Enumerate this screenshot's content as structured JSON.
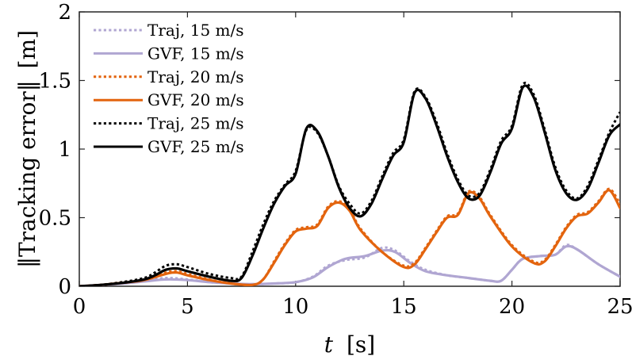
{
  "chart_data": {
    "type": "line",
    "title": "",
    "xlabel": "t [s]",
    "xlabel_var": "t",
    "xlabel_unit": "[s]",
    "ylabel": "||Tracking error|| [m]",
    "ylabel_text": "Tracking error",
    "ylabel_unit": "[m]",
    "xlim": [
      0,
      25
    ],
    "ylim": [
      0,
      2
    ],
    "xticks": [
      0,
      5,
      10,
      15,
      20,
      25
    ],
    "xtick_labels": [
      "0",
      "5",
      "10",
      "15",
      "20",
      "25"
    ],
    "yticks": [
      0,
      0.5,
      1,
      1.5,
      2
    ],
    "ytick_labels": [
      "0",
      "0.5",
      "1",
      "1.5",
      "2"
    ],
    "grid": false,
    "legend_position": "top-left",
    "series": [
      {
        "name": "Traj, 15 m/s",
        "color": "#b0a6d2",
        "style": "dotted",
        "points": [
          [
            0,
            0
          ],
          [
            1,
            0.01
          ],
          [
            2,
            0.025
          ],
          [
            3,
            0.04
          ],
          [
            4,
            0.06
          ],
          [
            5,
            0.05
          ],
          [
            6,
            0.03
          ],
          [
            7,
            0.02
          ],
          [
            8,
            0.015
          ],
          [
            9,
            0.02
          ],
          [
            10,
            0.03
          ],
          [
            10.8,
            0.07
          ],
          [
            11.5,
            0.15
          ],
          [
            12.3,
            0.19
          ],
          [
            13.2,
            0.21
          ],
          [
            14,
            0.28
          ],
          [
            14.6,
            0.26
          ],
          [
            15.3,
            0.18
          ],
          [
            16,
            0.12
          ],
          [
            17,
            0.08
          ],
          [
            18,
            0.06
          ],
          [
            19,
            0.04
          ],
          [
            19.5,
            0.04
          ],
          [
            20,
            0.12
          ],
          [
            20.5,
            0.2
          ],
          [
            21.3,
            0.22
          ],
          [
            22,
            0.23
          ],
          [
            22.5,
            0.3
          ],
          [
            23,
            0.27
          ],
          [
            24,
            0.16
          ],
          [
            25,
            0.07
          ]
        ]
      },
      {
        "name": "GVF, 15 m/s",
        "color": "#b0a6d2",
        "style": "solid",
        "points": [
          [
            0,
            0
          ],
          [
            1,
            0.01
          ],
          [
            2,
            0.02
          ],
          [
            3,
            0.035
          ],
          [
            4,
            0.05
          ],
          [
            5,
            0.045
          ],
          [
            6,
            0.03
          ],
          [
            7,
            0.02
          ],
          [
            8,
            0.015
          ],
          [
            9,
            0.02
          ],
          [
            10,
            0.03
          ],
          [
            10.8,
            0.065
          ],
          [
            11.5,
            0.14
          ],
          [
            12.3,
            0.2
          ],
          [
            13.2,
            0.22
          ],
          [
            14,
            0.26
          ],
          [
            14.6,
            0.25
          ],
          [
            15.3,
            0.17
          ],
          [
            16,
            0.11
          ],
          [
            17,
            0.08
          ],
          [
            18,
            0.06
          ],
          [
            19,
            0.04
          ],
          [
            19.5,
            0.04
          ],
          [
            20,
            0.12
          ],
          [
            20.5,
            0.2
          ],
          [
            21.3,
            0.22
          ],
          [
            22,
            0.23
          ],
          [
            22.5,
            0.29
          ],
          [
            23,
            0.27
          ],
          [
            24,
            0.16
          ],
          [
            25,
            0.07
          ]
        ]
      },
      {
        "name": "Traj, 20 m/s",
        "color": "#e3640e",
        "style": "dotted",
        "points": [
          [
            0,
            0
          ],
          [
            1,
            0.01
          ],
          [
            2,
            0.03
          ],
          [
            3,
            0.05
          ],
          [
            4,
            0.1
          ],
          [
            4.5,
            0.11
          ],
          [
            5,
            0.09
          ],
          [
            6,
            0.05
          ],
          [
            7,
            0.02
          ],
          [
            8,
            0.01
          ],
          [
            8.5,
            0.05
          ],
          [
            9,
            0.18
          ],
          [
            9.5,
            0.31
          ],
          [
            10,
            0.41
          ],
          [
            10.5,
            0.43
          ],
          [
            11,
            0.45
          ],
          [
            11.5,
            0.58
          ],
          [
            12,
            0.62
          ],
          [
            12.5,
            0.56
          ],
          [
            13,
            0.42
          ],
          [
            14,
            0.25
          ],
          [
            15,
            0.15
          ],
          [
            15.5,
            0.17
          ],
          [
            16,
            0.28
          ],
          [
            16.5,
            0.4
          ],
          [
            17,
            0.51
          ],
          [
            17.5,
            0.53
          ],
          [
            18,
            0.69
          ],
          [
            18.5,
            0.65
          ],
          [
            19,
            0.52
          ],
          [
            20,
            0.3
          ],
          [
            21,
            0.18
          ],
          [
            21.5,
            0.19
          ],
          [
            22,
            0.3
          ],
          [
            22.5,
            0.43
          ],
          [
            23,
            0.52
          ],
          [
            23.5,
            0.54
          ],
          [
            24,
            0.62
          ],
          [
            24.5,
            0.71
          ],
          [
            25,
            0.6
          ]
        ]
      },
      {
        "name": "GVF, 20 m/s",
        "color": "#e3640e",
        "style": "solid",
        "points": [
          [
            0,
            0
          ],
          [
            1,
            0.01
          ],
          [
            2,
            0.025
          ],
          [
            3,
            0.045
          ],
          [
            4,
            0.09
          ],
          [
            4.5,
            0.1
          ],
          [
            5,
            0.08
          ],
          [
            6,
            0.045
          ],
          [
            7,
            0.02
          ],
          [
            8,
            0.01
          ],
          [
            8.5,
            0.05
          ],
          [
            9,
            0.17
          ],
          [
            9.5,
            0.3
          ],
          [
            10,
            0.4
          ],
          [
            10.5,
            0.42
          ],
          [
            11,
            0.44
          ],
          [
            11.5,
            0.57
          ],
          [
            12,
            0.61
          ],
          [
            12.5,
            0.55
          ],
          [
            13,
            0.41
          ],
          [
            14,
            0.25
          ],
          [
            15,
            0.14
          ],
          [
            15.5,
            0.16
          ],
          [
            16,
            0.27
          ],
          [
            16.5,
            0.39
          ],
          [
            17,
            0.5
          ],
          [
            17.5,
            0.52
          ],
          [
            18,
            0.68
          ],
          [
            18.5,
            0.64
          ],
          [
            19,
            0.51
          ],
          [
            20,
            0.29
          ],
          [
            21,
            0.17
          ],
          [
            21.5,
            0.18
          ],
          [
            22,
            0.29
          ],
          [
            22.5,
            0.42
          ],
          [
            23,
            0.51
          ],
          [
            23.5,
            0.53
          ],
          [
            24,
            0.61
          ],
          [
            24.5,
            0.7
          ],
          [
            25,
            0.57
          ]
        ]
      },
      {
        "name": "Traj, 25 m/s",
        "color": "#000000",
        "style": "dotted",
        "points": [
          [
            0,
            0
          ],
          [
            1,
            0.01
          ],
          [
            2,
            0.03
          ],
          [
            3,
            0.06
          ],
          [
            3.5,
            0.1
          ],
          [
            4,
            0.15
          ],
          [
            4.5,
            0.16
          ],
          [
            5,
            0.14
          ],
          [
            6,
            0.09
          ],
          [
            7,
            0.06
          ],
          [
            7.5,
            0.07
          ],
          [
            8,
            0.25
          ],
          [
            8.5,
            0.45
          ],
          [
            9,
            0.62
          ],
          [
            9.5,
            0.74
          ],
          [
            10,
            0.84
          ],
          [
            10.5,
            1.14
          ],
          [
            11,
            1.12
          ],
          [
            11.5,
            0.95
          ],
          [
            12,
            0.73
          ],
          [
            12.5,
            0.6
          ],
          [
            13,
            0.53
          ],
          [
            13.5,
            0.62
          ],
          [
            14,
            0.8
          ],
          [
            14.5,
            0.97
          ],
          [
            15,
            1.07
          ],
          [
            15.5,
            1.42
          ],
          [
            16,
            1.38
          ],
          [
            16.5,
            1.2
          ],
          [
            17,
            0.97
          ],
          [
            17.5,
            0.78
          ],
          [
            18,
            0.66
          ],
          [
            18.5,
            0.68
          ],
          [
            19,
            0.85
          ],
          [
            19.5,
            1.06
          ],
          [
            20,
            1.17
          ],
          [
            20.5,
            1.47
          ],
          [
            21,
            1.4
          ],
          [
            21.5,
            1.15
          ],
          [
            22,
            0.87
          ],
          [
            22.5,
            0.7
          ],
          [
            23,
            0.64
          ],
          [
            23.5,
            0.73
          ],
          [
            24,
            0.92
          ],
          [
            24.5,
            1.12
          ],
          [
            25,
            1.27
          ]
        ]
      },
      {
        "name": "GVF, 25 m/s",
        "color": "#000000",
        "style": "solid",
        "points": [
          [
            0,
            0
          ],
          [
            1,
            0.01
          ],
          [
            2,
            0.025
          ],
          [
            3,
            0.05
          ],
          [
            3.5,
            0.08
          ],
          [
            4,
            0.12
          ],
          [
            4.5,
            0.13
          ],
          [
            5,
            0.11
          ],
          [
            6,
            0.07
          ],
          [
            7,
            0.04
          ],
          [
            7.5,
            0.06
          ],
          [
            8,
            0.22
          ],
          [
            8.5,
            0.42
          ],
          [
            9,
            0.6
          ],
          [
            9.5,
            0.73
          ],
          [
            10,
            0.82
          ],
          [
            10.5,
            1.15
          ],
          [
            11,
            1.13
          ],
          [
            11.5,
            0.95
          ],
          [
            12,
            0.72
          ],
          [
            12.5,
            0.57
          ],
          [
            13,
            0.51
          ],
          [
            13.5,
            0.6
          ],
          [
            14,
            0.78
          ],
          [
            14.5,
            0.95
          ],
          [
            15,
            1.05
          ],
          [
            15.5,
            1.41
          ],
          [
            16,
            1.37
          ],
          [
            16.5,
            1.18
          ],
          [
            17,
            0.95
          ],
          [
            17.5,
            0.76
          ],
          [
            18,
            0.64
          ],
          [
            18.5,
            0.66
          ],
          [
            19,
            0.83
          ],
          [
            19.5,
            1.04
          ],
          [
            20,
            1.15
          ],
          [
            20.5,
            1.45
          ],
          [
            21,
            1.38
          ],
          [
            21.5,
            1.13
          ],
          [
            22,
            0.85
          ],
          [
            22.5,
            0.68
          ],
          [
            23,
            0.63
          ],
          [
            23.5,
            0.71
          ],
          [
            24,
            0.9
          ],
          [
            24.5,
            1.1
          ],
          [
            25,
            1.18
          ]
        ]
      }
    ]
  }
}
